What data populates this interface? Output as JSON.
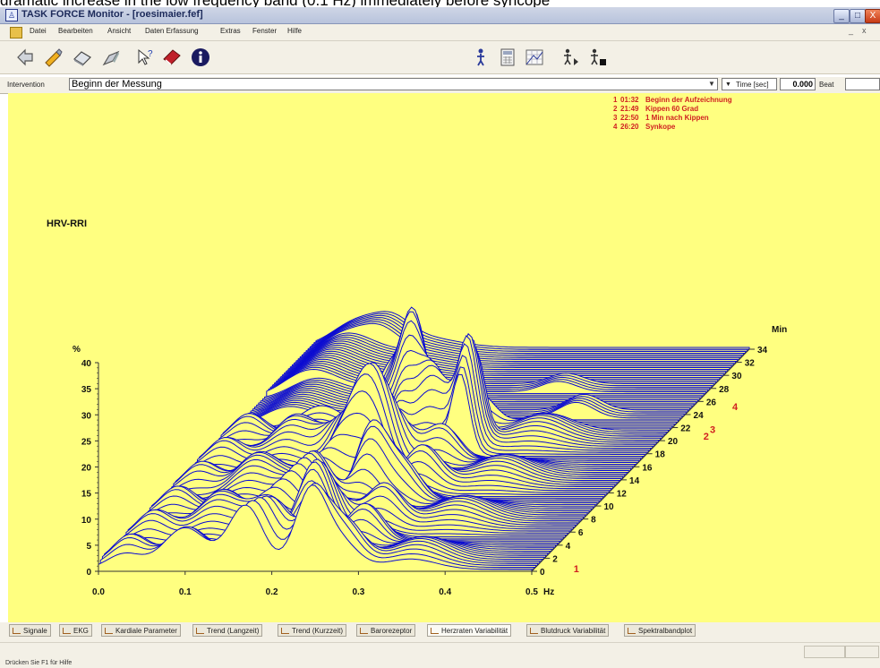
{
  "caption_text": "dramatic increase in the low frequency band (0.1 Hz) immediately before syncope",
  "window": {
    "title": "TASK FORCE Monitor - [roesimaier.fef]",
    "buttons": [
      "_",
      "□",
      "X"
    ]
  },
  "menu": {
    "items": [
      "Datei",
      "Bearbeiten",
      "Ansicht",
      "Daten Erfassung",
      "Extras",
      "Fenster",
      "Hilfe"
    ],
    "mdi_minimize": "_",
    "mdi_close": "x"
  },
  "toolbar": {
    "left_icons": [
      "arrow-back-icon",
      "pencil-icon",
      "eraser-icon",
      "broom-icon",
      "help-pointer-icon",
      "book-icon",
      "info-icon"
    ],
    "right_icons": [
      "person-icon",
      "calculator-icon",
      "grid-icon",
      "person-play-icon",
      "person-stop-icon"
    ]
  },
  "intervention": {
    "label": "Intervention",
    "value": "Beginn der Messung",
    "time_label": "Time [sec]",
    "time_value": "0.000",
    "beat_label": "Beat",
    "beat_value": ""
  },
  "chart_data": {
    "type": "waterfall-3d",
    "title": "HRV-RRI",
    "x_label": "Hz",
    "y_label": "%",
    "z_label": "Min",
    "x_ticks": [
      "0.0",
      "0.1",
      "0.2",
      "0.3",
      "0.4",
      "0.5"
    ],
    "y_ticks": [
      "0",
      "5",
      "10",
      "15",
      "20",
      "25",
      "30",
      "35",
      "40"
    ],
    "z_ticks": [
      "0",
      "2",
      "4",
      "6",
      "8",
      "10",
      "12",
      "14",
      "16",
      "18",
      "20",
      "22",
      "24",
      "26",
      "28",
      "30",
      "32",
      "34"
    ],
    "ylim": [
      0,
      40
    ],
    "xlim": [
      0,
      0.5
    ],
    "zlim": [
      0,
      34
    ],
    "line_color": "#0a0ad2",
    "background_color": "#ffff80",
    "annotation_color": "#d02020",
    "event_markers": [
      {
        "label": "1",
        "minute": 1.5
      },
      {
        "label": "2",
        "minute": 21.8
      },
      {
        "label": "3",
        "minute": 22.8
      },
      {
        "label": "4",
        "minute": 26.3
      }
    ],
    "legend": [
      {
        "index": "1",
        "time": "01:32",
        "text": "Beginn der Aufzeichnung"
      },
      {
        "index": "2",
        "time": "21:49",
        "text": "Kippen 60 Grad"
      },
      {
        "index": "3",
        "time": "22:50",
        "text": "1 Min nach Kippen"
      },
      {
        "index": "4",
        "time": "26:20",
        "text": "Synkope"
      }
    ]
  },
  "tabs": [
    {
      "label": "Signale",
      "active": false
    },
    {
      "label": "EKG",
      "active": false
    },
    {
      "label": "Kardiale Parameter",
      "active": false
    },
    {
      "label": "Trend (Langzeit)",
      "active": false
    },
    {
      "label": "Trend (Kurzzeit)",
      "active": false
    },
    {
      "label": "Barorezeptor",
      "active": false
    },
    {
      "label": "Herzraten Variabilität",
      "active": true
    },
    {
      "label": "Blutdruck Variabilität",
      "active": false
    },
    {
      "label": "Spektralbandplot",
      "active": false
    }
  ],
  "status": {
    "text": "Drücken Sie F1 für Hilfe"
  }
}
